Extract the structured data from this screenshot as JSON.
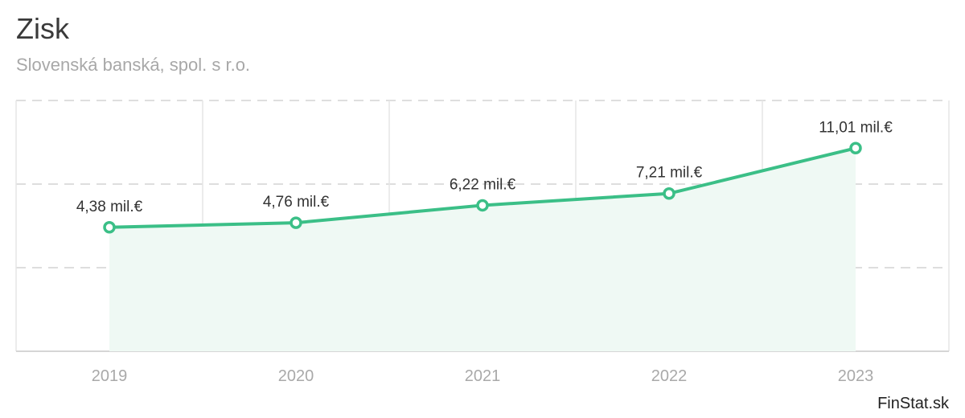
{
  "header": {
    "title": "Zisk",
    "subtitle": "Slovenská banská, spol. s r.o."
  },
  "brand": {
    "label": "FinStat.sk"
  },
  "colors": {
    "line": "#3bbf87",
    "area": "#eff9f4",
    "grid": "#dedede",
    "title": "#3a3a3a",
    "subtitle": "#a8a8a8"
  },
  "chart_data": {
    "type": "area",
    "categories": [
      "2019",
      "2020",
      "2021",
      "2022",
      "2023"
    ],
    "series": [
      {
        "values": [
          4.38,
          4.76,
          6.22,
          7.21,
          11.01
        ],
        "labels": [
          "4,38 mil.€",
          "4,76 mil.€",
          "6,22 mil.€",
          "7,21 mil.€",
          "11,01 mil.€"
        ]
      }
    ],
    "ylim": [
      -6,
      15
    ],
    "grid": true,
    "legend": "none"
  }
}
